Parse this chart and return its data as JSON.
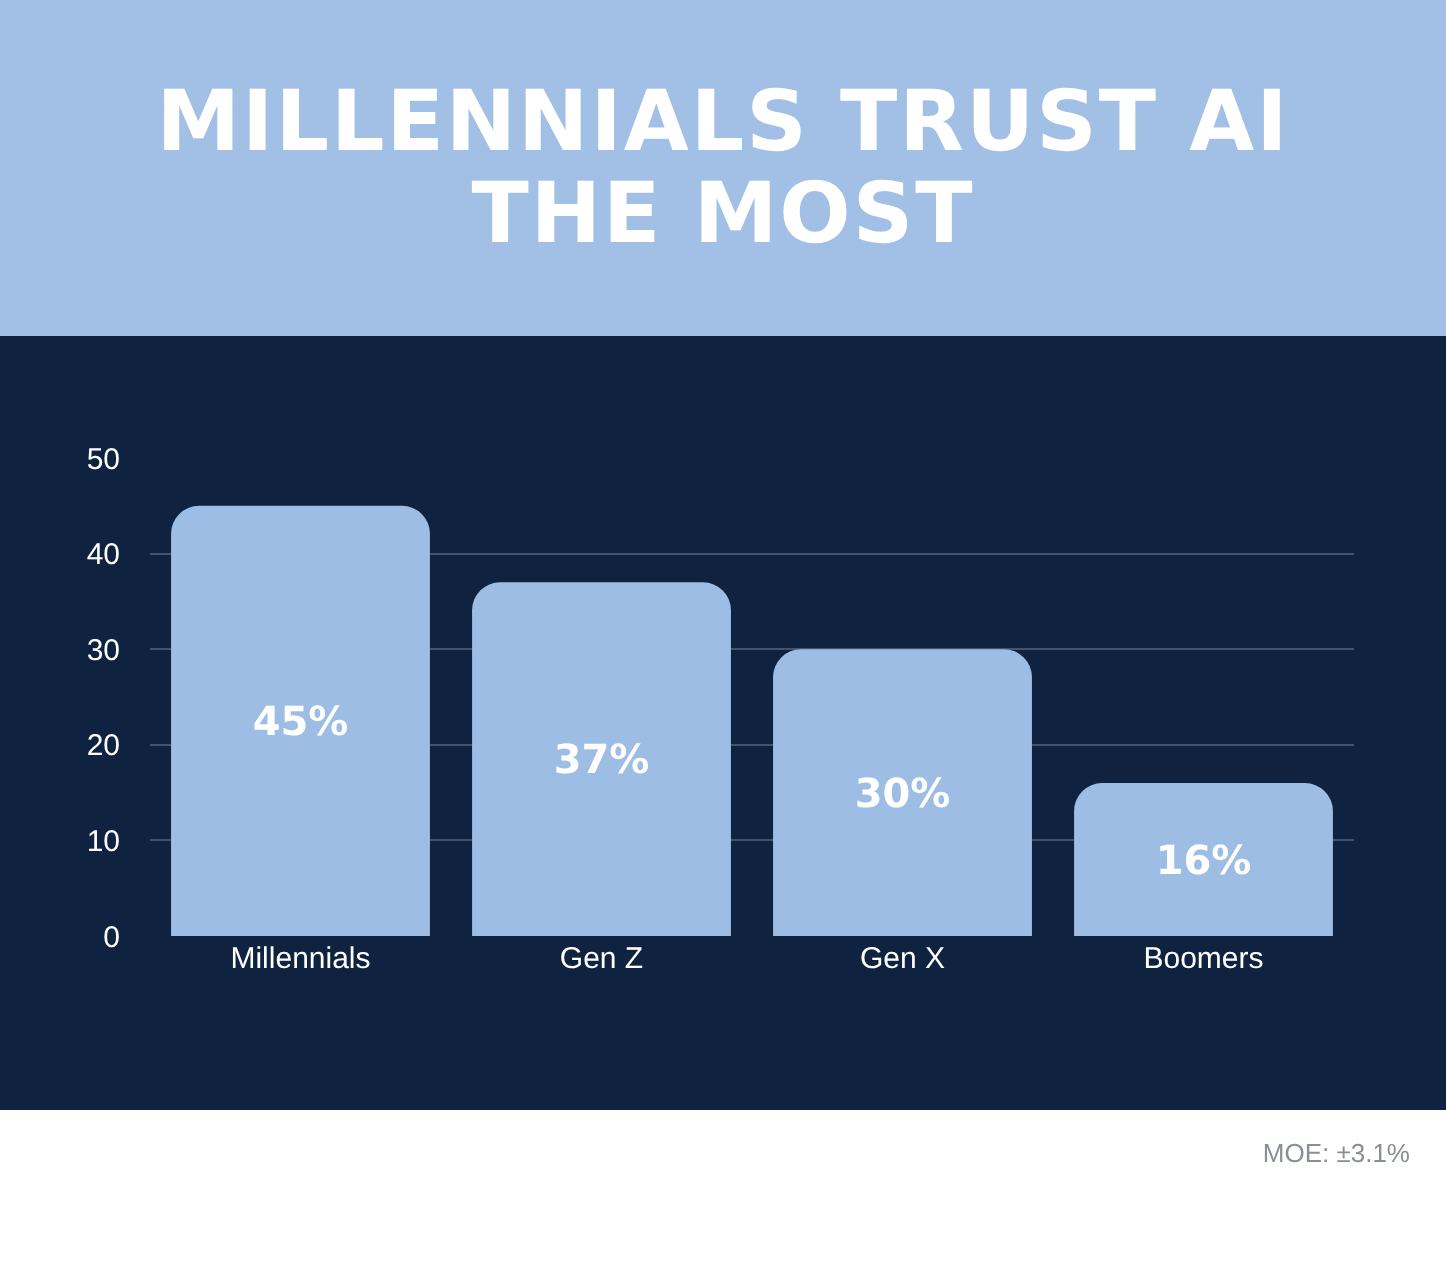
{
  "chart_data": {
    "type": "bar",
    "title": "MILLENNIALS TRUST AI THE MOST",
    "categories": [
      "Millennials",
      "Gen Z",
      "Gen X",
      "Boomers"
    ],
    "values": [
      45,
      37,
      30,
      16
    ],
    "value_labels": [
      "45%",
      "37%",
      "30%",
      "16%"
    ],
    "color": "#9dbde4",
    "ylim": [
      0,
      50
    ],
    "yticks": [
      0,
      10,
      20,
      30,
      40,
      50
    ],
    "grid": "y",
    "annotations": [
      "MOE: ±3.1%"
    ]
  }
}
